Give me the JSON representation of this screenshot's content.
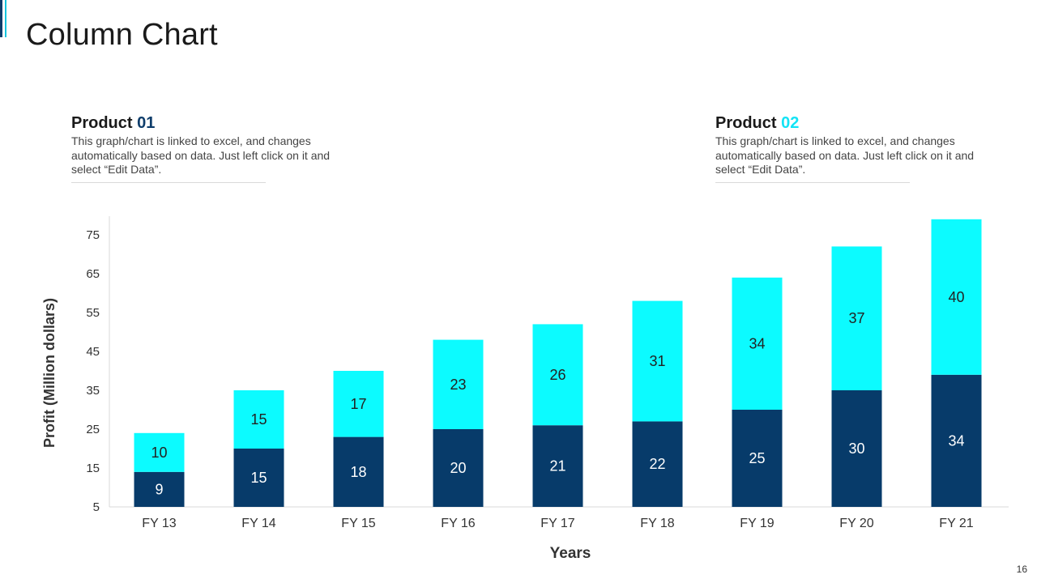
{
  "page": {
    "title": "Column Chart",
    "page_number": "16"
  },
  "products": [
    {
      "label": "Product ",
      "number": "01",
      "description": "This graph/chart is linked to excel, and changes automatically based on data. Just left click on it and select “Edit Data”."
    },
    {
      "label": "Product ",
      "number": "02",
      "description": "This graph/chart is linked to excel, and changes automatically based on data. Just left click on it and select “Edit Data”."
    }
  ],
  "colors": {
    "series_1": "#073b6a",
    "series_2": "#0cfbff",
    "label_on_dark": "#ffffff",
    "label_on_light": "#222222",
    "axis_text": "#333333",
    "axis_line": "#d9d9d9"
  },
  "chart_data": {
    "type": "bar",
    "stacked": true,
    "categories": [
      "FY 13",
      "FY 14",
      "FY 15",
      "FY 16",
      "FY 17",
      "FY 18",
      "FY 19",
      "FY 20",
      "FY 21"
    ],
    "series": [
      {
        "values": [
          9,
          15,
          18,
          20,
          21,
          22,
          25,
          30,
          34
        ]
      },
      {
        "values": [
          10,
          15,
          17,
          23,
          26,
          31,
          34,
          37,
          40
        ]
      }
    ],
    "xlabel": "Years",
    "ylabel": "Profit  (Million dollars)",
    "ylim": [
      5,
      80
    ],
    "yticks": [
      5,
      15,
      25,
      35,
      45,
      55,
      65,
      75
    ],
    "grid": false,
    "data_labels": true
  }
}
